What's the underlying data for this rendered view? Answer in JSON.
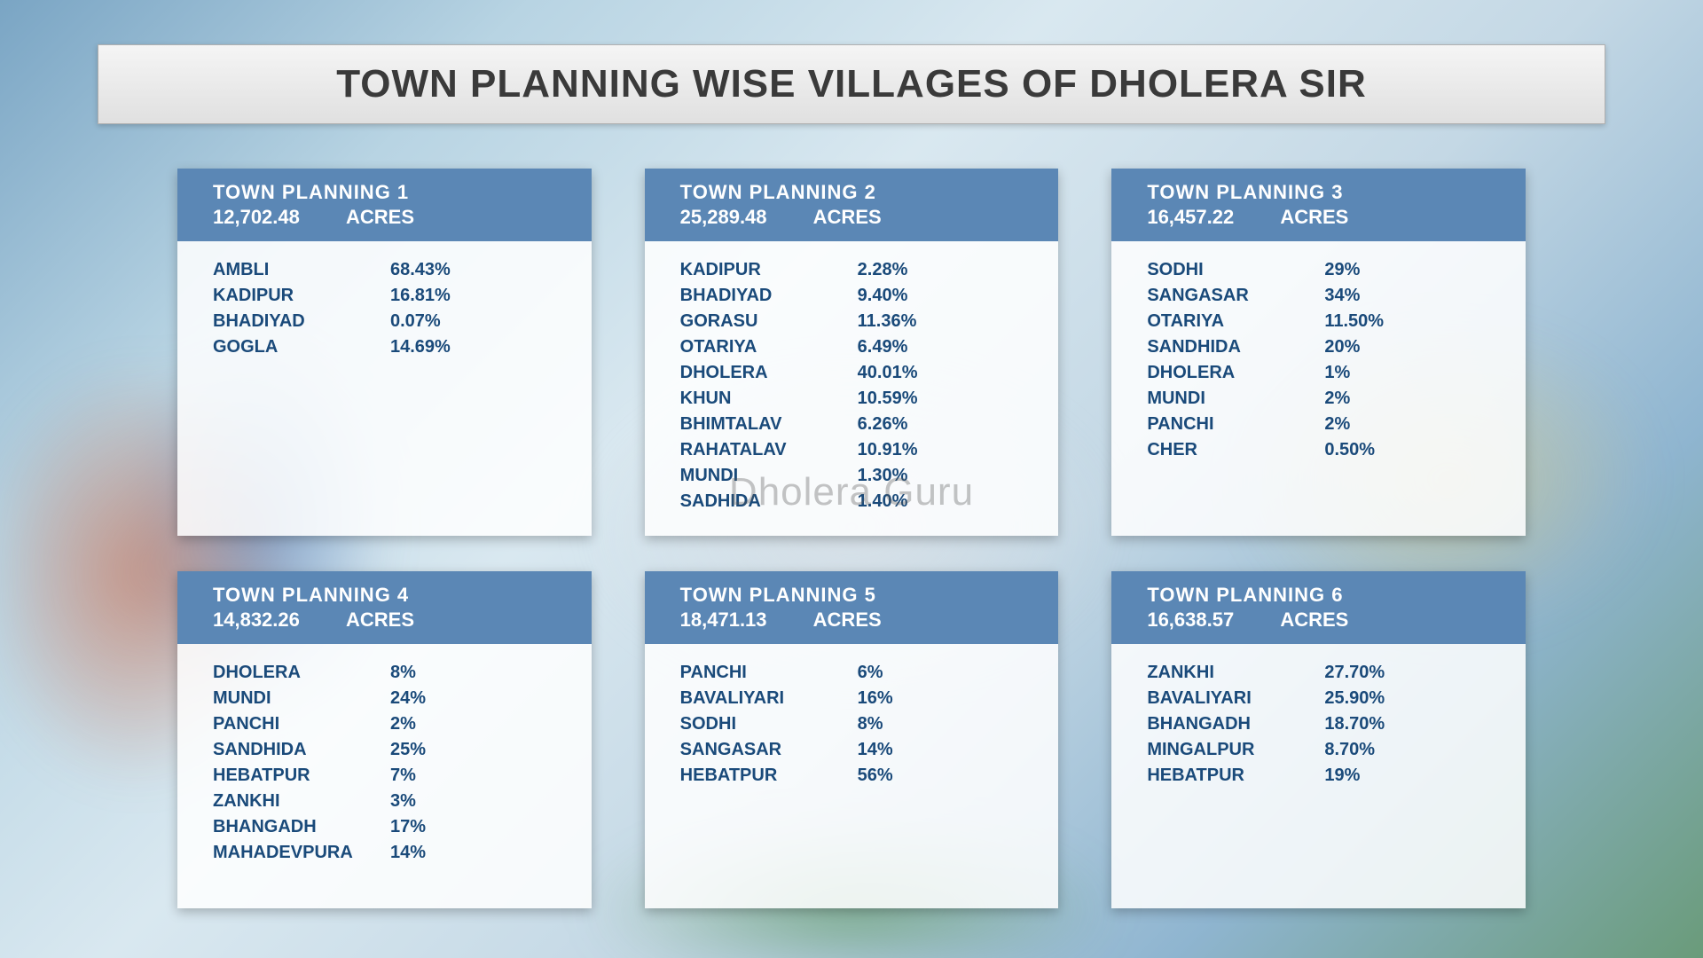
{
  "title": "TOWN PLANNING WISE VILLAGES OF DHOLERA SIR",
  "watermark": "Dholera Guru",
  "header_bg": "#5b87b5",
  "text_color": "#1a4a7a",
  "acres_label": "ACRES",
  "cards": [
    {
      "title": "TOWN PLANNING 1",
      "acres": "12,702.48",
      "rows": [
        {
          "name": "AMBLI",
          "pct": "68.43%"
        },
        {
          "name": "KADIPUR",
          "pct": "16.81%"
        },
        {
          "name": "BHADIYAD",
          "pct": "0.07%"
        },
        {
          "name": "GOGLA",
          "pct": "14.69%"
        }
      ]
    },
    {
      "title": "TOWN PLANNING 2",
      "acres": "25,289.48",
      "rows": [
        {
          "name": "KADIPUR",
          "pct": "2.28%"
        },
        {
          "name": "BHADIYAD",
          "pct": "9.40%"
        },
        {
          "name": "GORASU",
          "pct": "11.36%"
        },
        {
          "name": "OTARIYA",
          "pct": "6.49%"
        },
        {
          "name": "DHOLERA",
          "pct": "40.01%"
        },
        {
          "name": "KHUN",
          "pct": "10.59%"
        },
        {
          "name": "BHIMTALAV",
          "pct": "6.26%"
        },
        {
          "name": "RAHATALAV",
          "pct": "10.91%"
        },
        {
          "name": "MUNDI",
          "pct": "1.30%"
        },
        {
          "name": "SADHIDA",
          "pct": "1.40%"
        }
      ]
    },
    {
      "title": "TOWN PLANNING 3",
      "acres": "16,457.22",
      "rows": [
        {
          "name": "SODHI",
          "pct": "29%"
        },
        {
          "name": "SANGASAR",
          "pct": "34%"
        },
        {
          "name": "OTARIYA",
          "pct": "11.50%"
        },
        {
          "name": "SANDHIDA",
          "pct": "20%"
        },
        {
          "name": "DHOLERA",
          "pct": "1%"
        },
        {
          "name": "MUNDI",
          "pct": "2%"
        },
        {
          "name": "PANCHI",
          "pct": "2%"
        },
        {
          "name": "CHER",
          "pct": "0.50%"
        }
      ]
    },
    {
      "title": "TOWN PLANNING 4",
      "acres": "14,832.26",
      "rows": [
        {
          "name": "DHOLERA",
          "pct": "8%"
        },
        {
          "name": "MUNDI",
          "pct": "24%"
        },
        {
          "name": "PANCHI",
          "pct": "2%"
        },
        {
          "name": "SANDHIDA",
          "pct": "25%"
        },
        {
          "name": "HEBATPUR",
          "pct": "7%"
        },
        {
          "name": "ZANKHI",
          "pct": "3%"
        },
        {
          "name": "BHANGADH",
          "pct": "17%"
        },
        {
          "name": "MAHADEVPURA",
          "pct": "14%"
        }
      ]
    },
    {
      "title": "TOWN PLANNING 5",
      "acres": "18,471.13",
      "rows": [
        {
          "name": "PANCHI",
          "pct": "6%"
        },
        {
          "name": "BAVALIYARI",
          "pct": "16%"
        },
        {
          "name": "SODHI",
          "pct": "8%"
        },
        {
          "name": "SANGASAR",
          "pct": "14%"
        },
        {
          "name": "HEBATPUR",
          "pct": "56%"
        }
      ]
    },
    {
      "title": "TOWN PLANNING 6",
      "acres": "16,638.57",
      "rows": [
        {
          "name": "ZANKHI",
          "pct": "27.70%"
        },
        {
          "name": "BAVALIYARI",
          "pct": "25.90%"
        },
        {
          "name": "BHANGADH",
          "pct": "18.70%"
        },
        {
          "name": "MINGALPUR",
          "pct": "8.70%"
        },
        {
          "name": "HEBATPUR",
          "pct": "19%"
        }
      ]
    }
  ]
}
